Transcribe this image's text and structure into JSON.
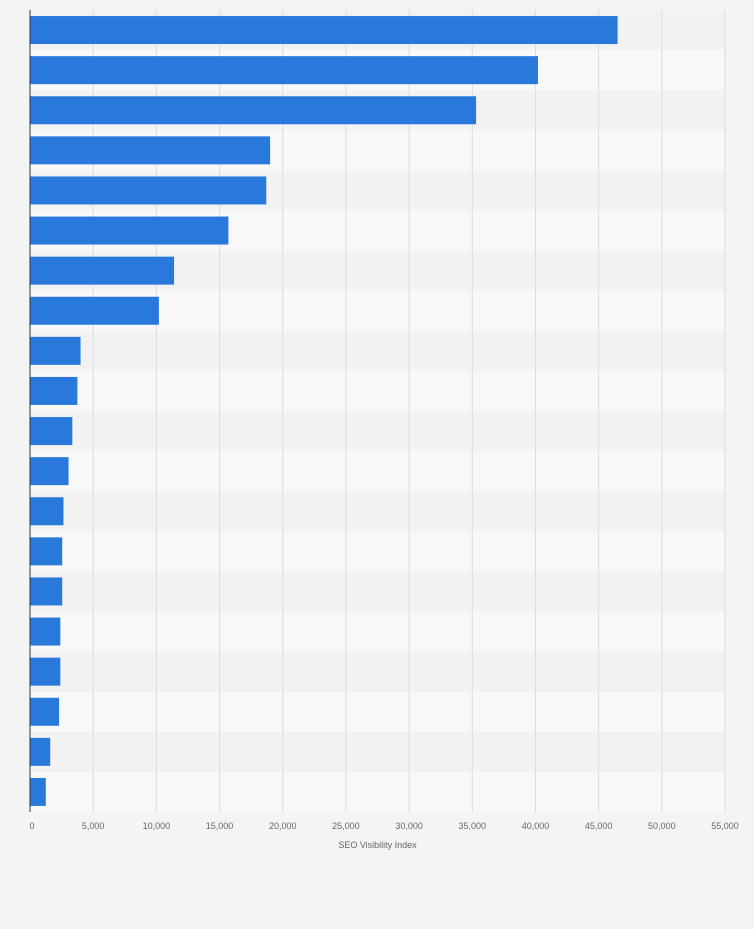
{
  "chart_data": {
    "type": "bar",
    "orientation": "horizontal",
    "xlabel": "SEO Visibility Index",
    "xlim": [
      0,
      55000
    ],
    "xticks": [
      0,
      5000,
      10000,
      15000,
      20000,
      25000,
      30000,
      35000,
      40000,
      45000,
      50000,
      55000
    ],
    "xtick_labels": [
      "0",
      "5,000",
      "10,000",
      "15,000",
      "20,000",
      "25,000",
      "30,000",
      "35,000",
      "40,000",
      "45,000",
      "50,000",
      "55,000"
    ],
    "values": [
      46500,
      40200,
      35300,
      19000,
      18700,
      15700,
      11400,
      10200,
      4000,
      3750,
      3350,
      3050,
      2650,
      2550,
      2550,
      2400,
      2400,
      2300,
      1600,
      1250
    ],
    "grid": true,
    "legend": "none",
    "colors": {
      "bar": "#2979dd",
      "band_dark": "#f2f2f2",
      "band_light": "#f8f8f8",
      "grid": "#dcdcdc",
      "axis": "#333333",
      "page": "#f4f4f4"
    }
  }
}
